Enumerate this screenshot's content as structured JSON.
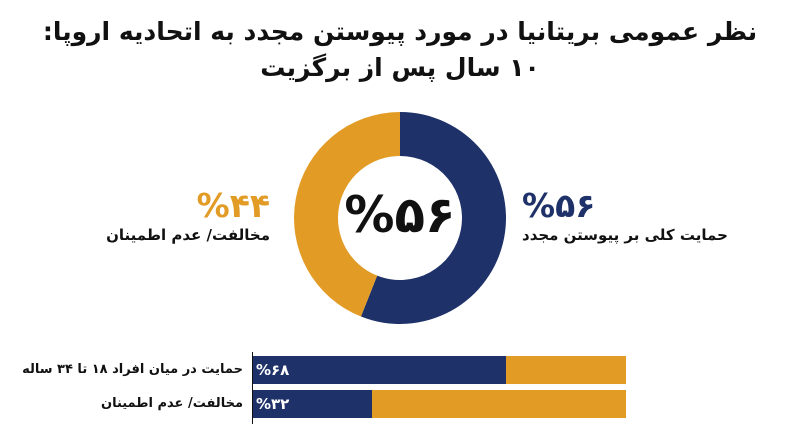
{
  "title": {
    "line1": "نظر عمومی بریتانیا در مورد پیوستن مجدد به اتحادیه اروپا:",
    "line2": "۱۰ سال پس از برگزیت"
  },
  "colors": {
    "support": "#1e3168",
    "oppose": "#e29c26"
  },
  "donut": {
    "center_label": "%۵۶",
    "support": {
      "pct_label": "%۵۶",
      "label": "حمایت کلی بر پیوستن مجدد"
    },
    "oppose": {
      "pct_label": "%۴۴",
      "label": "مخالفت/ عدم اطمینان"
    }
  },
  "bars": {
    "rows": [
      {
        "label": "حمایت در میان افراد ۱۸ تا ۳۴ ساله",
        "pct_label": "%۶۸"
      },
      {
        "label": "مخالفت/ عدم اطمینان",
        "pct_label": "%۳۲"
      }
    ]
  },
  "chart_data": [
    {
      "type": "pie",
      "title": "نظر عمومی بریتانیا در مورد پیوستن مجدد به اتحادیه اروپا: ۱۰ سال پس از برگزیت",
      "categories": [
        "حمایت کلی بر پیوستن مجدد",
        "مخالفت/ عدم اطمینان"
      ],
      "values": [
        56,
        44
      ],
      "colors": [
        "#1e3168",
        "#e29c26"
      ]
    },
    {
      "type": "bar",
      "categories": [
        "حمایت در میان افراد ۱۸ تا ۳۴ ساله",
        "مخالفت/ عدم اطمینان"
      ],
      "values": [
        68,
        32
      ],
      "colors": [
        "#1e3168",
        "#e29c26"
      ]
    }
  ]
}
